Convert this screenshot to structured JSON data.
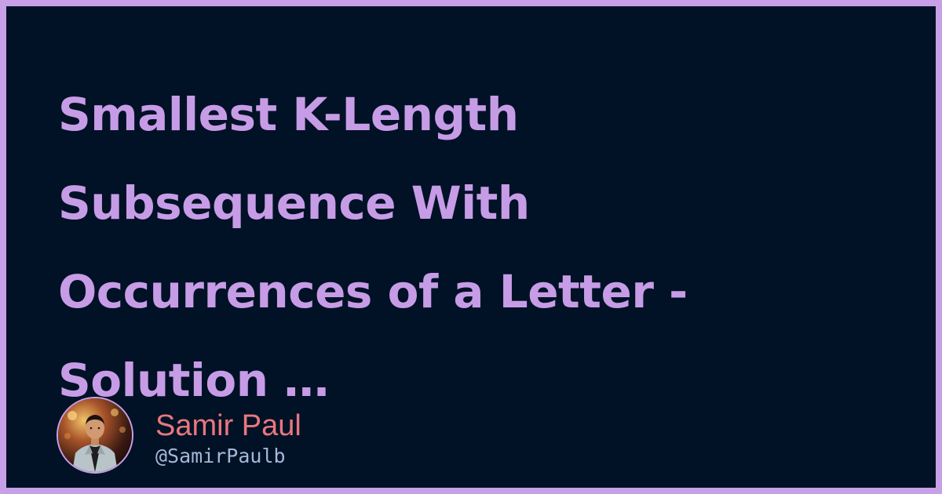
{
  "post": {
    "title_lines": [
      "Smallest K-Length",
      "Subsequence With",
      "Occurrences of a Letter -",
      "Solution …"
    ]
  },
  "author": {
    "name": "Samir Paul",
    "handle": "@SamirPaulb"
  },
  "colors": {
    "frame": "#c8a0e8",
    "background": "#021226",
    "title": "#c79ce6",
    "author_name": "#e8777f",
    "author_handle": "#a9b6d8"
  }
}
